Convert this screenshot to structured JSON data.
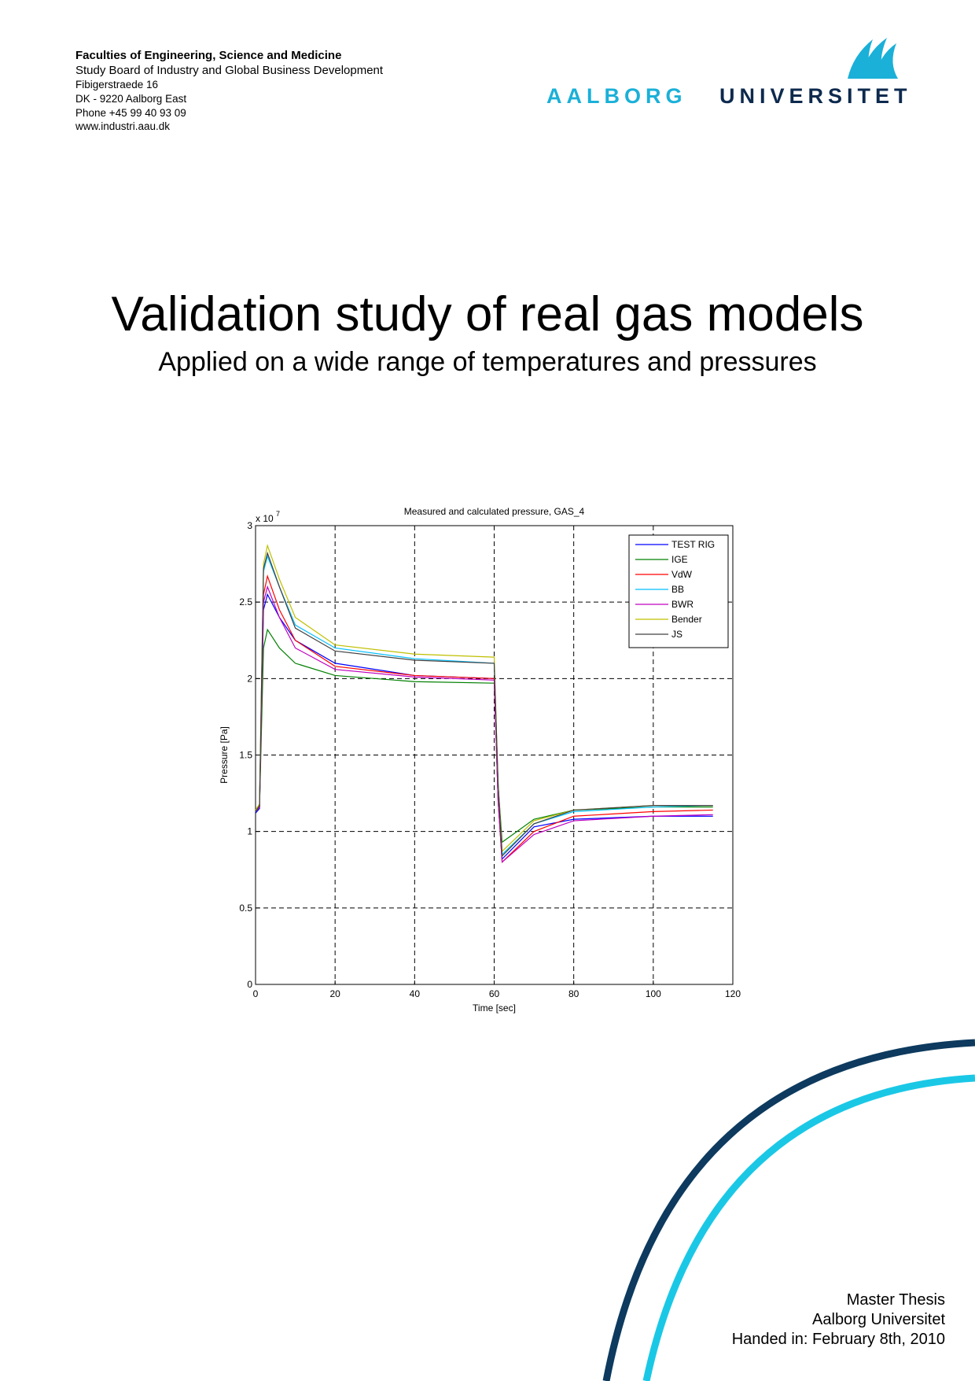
{
  "header": {
    "lines": [
      "Faculties of Engineering, Science and Medicine",
      "Study Board of Industry and Global Business Development",
      "Fibigerstraede 16",
      "DK - 9220 Aalborg East",
      "Phone +45 99 40 93 09",
      "www.industri.aau.dk"
    ],
    "logo": [
      "AALBORG",
      "UNIVERSITET"
    ]
  },
  "title": "Validation study of real gas models",
  "subtitle": "Applied on a wide range of temperatures and pressures",
  "chart_data": {
    "type": "line",
    "title": "Measured and calculated pressure, GAS_4",
    "x_label": "Time [sec]",
    "y_label": "Pressure [Pa]",
    "y_multiplier": "x 10",
    "y_multiplier_exponent": "7",
    "x": [
      0,
      1,
      2,
      3,
      6,
      10,
      20,
      40,
      60,
      61,
      62,
      70,
      80,
      100,
      115
    ],
    "series": [
      {
        "name": "TEST RIG",
        "color": "#0000ff",
        "values": [
          1.12,
          1.15,
          2.45,
          2.55,
          2.4,
          2.25,
          2.1,
          2.02,
          2.0,
          1.2,
          0.82,
          1.03,
          1.08,
          1.1,
          1.1
        ]
      },
      {
        "name": "IGE",
        "color": "#008000",
        "values": [
          1.13,
          1.16,
          2.2,
          2.32,
          2.2,
          2.1,
          2.02,
          1.98,
          1.97,
          1.3,
          0.93,
          1.08,
          1.14,
          1.16,
          1.16
        ]
      },
      {
        "name": "VdW",
        "color": "#ff0000",
        "values": [
          1.13,
          1.16,
          2.55,
          2.67,
          2.45,
          2.25,
          2.08,
          2.02,
          2.0,
          1.2,
          0.8,
          1.0,
          1.1,
          1.13,
          1.14
        ]
      },
      {
        "name": "BB",
        "color": "#00bfff",
        "values": [
          1.13,
          1.17,
          2.7,
          2.8,
          2.6,
          2.35,
          2.2,
          2.13,
          2.1,
          1.3,
          0.85,
          1.05,
          1.13,
          1.16,
          1.17
        ]
      },
      {
        "name": "BWR",
        "color": "#bf00bf",
        "values": [
          1.13,
          1.16,
          2.5,
          2.6,
          2.4,
          2.2,
          2.06,
          2.01,
          1.99,
          1.2,
          0.8,
          0.98,
          1.07,
          1.1,
          1.11
        ]
      },
      {
        "name": "Bender",
        "color": "#bfbf00",
        "values": [
          1.14,
          1.18,
          2.75,
          2.87,
          2.65,
          2.4,
          2.22,
          2.16,
          2.14,
          1.3,
          0.87,
          1.07,
          1.14,
          1.17,
          1.17
        ]
      },
      {
        "name": "JS",
        "color": "#404040",
        "values": [
          1.13,
          1.17,
          2.72,
          2.82,
          2.6,
          2.33,
          2.18,
          2.12,
          2.1,
          1.3,
          0.84,
          1.05,
          1.14,
          1.17,
          1.17
        ]
      }
    ],
    "xlim": [
      0,
      120
    ],
    "ylim": [
      0,
      3
    ],
    "xticks": [
      0,
      20,
      40,
      60,
      80,
      100,
      120
    ],
    "yticks": [
      0,
      0.5,
      1,
      1.5,
      2,
      2.5,
      3
    ],
    "grid": true,
    "legend": "upper right"
  },
  "footer": {
    "lines": [
      "Master Thesis",
      "Aalborg Universitet",
      "Handed in: February 8th, 2010"
    ]
  }
}
